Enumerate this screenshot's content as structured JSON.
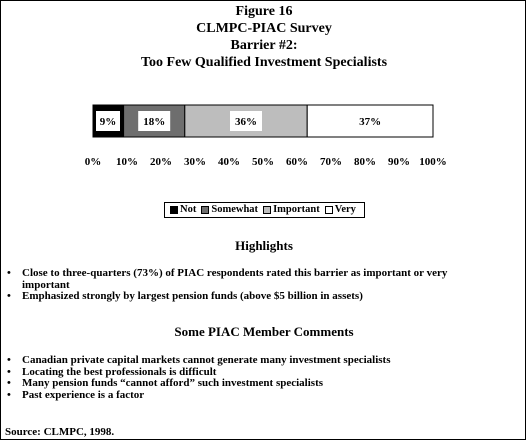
{
  "title": {
    "line1": "Figure 16",
    "line2": "CLMPC-PIAC Survey",
    "line3": "Barrier #2:",
    "line4": "Too Few Qualified Investment Specialists"
  },
  "chart_data": {
    "type": "bar",
    "orientation": "horizontal",
    "stacked": true,
    "percent": true,
    "categories": [
      "Barrier #2"
    ],
    "series": [
      {
        "name": "Not",
        "values": [
          9
        ],
        "label": "9%",
        "color": "#000000"
      },
      {
        "name": "Somewhat",
        "values": [
          18
        ],
        "label": "18%",
        "color": "#6e6e6e"
      },
      {
        "name": "Important",
        "values": [
          36
        ],
        "label": "36%",
        "color": "#bdbdbd"
      },
      {
        "name": "Very",
        "values": [
          37
        ],
        "label": "37%",
        "color": "#ffffff"
      }
    ],
    "xlim": [
      0,
      100
    ],
    "xticks": [
      "0%",
      "10%",
      "20%",
      "30%",
      "40%",
      "50%",
      "60%",
      "70%",
      "80%",
      "90%",
      "100%"
    ],
    "legend_position": "bottom",
    "grid": false
  },
  "highlights": {
    "heading": "Highlights",
    "bullet": "•",
    "items": [
      "Close to three-quarters (73%) of PIAC respondents rated this barrier as important or very important",
      "Emphasized strongly by largest pension funds (above $5 billion in assets)"
    ]
  },
  "comments": {
    "heading": "Some PIAC Member Comments",
    "bullet": "•",
    "items": [
      "Canadian private capital markets cannot generate many investment specialists",
      "Locating the best professionals is difficult",
      "Many pension funds “cannot afford” such investment specialists",
      "Past experience is a factor"
    ]
  },
  "source": "Source: CLMPC, 1998."
}
